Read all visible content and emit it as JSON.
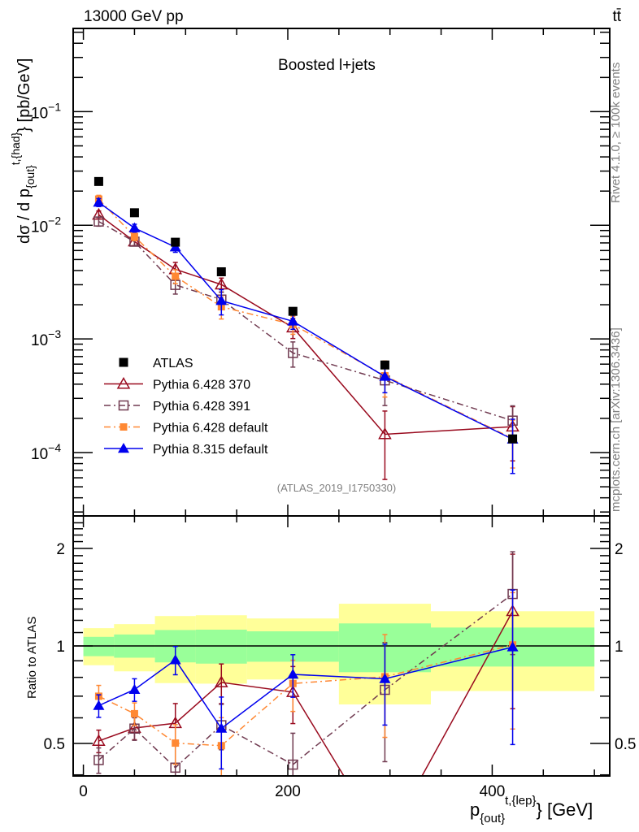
{
  "header": {
    "energy": "13000 GeV pp",
    "process": "tt̄"
  },
  "side_text": {
    "rivet": "Rivet 4.1.0, ≥ 100k events",
    "mcplots": "mcplots.cern.ch [arXiv:1306.3436]"
  },
  "chart_data": [
    {
      "type": "line",
      "title": "Boosted l+jets",
      "analysis": "(ATLAS_2019_I1750330)",
      "ylabel": {
        "main": "dσ / d p",
        "sub": "{out}",
        "sup": "t,{had}",
        "suffix": "} [pb/GeV]"
      },
      "yscale": "log",
      "ylim": [
        2.77e-05,
        0.54
      ],
      "yticks": [
        {
          "v": 0.1,
          "base": "10",
          "exp": "−1"
        },
        {
          "v": 0.01,
          "base": "10",
          "exp": "−2"
        },
        {
          "v": 0.001,
          "base": "10",
          "exp": "−3"
        },
        {
          "v": 0.0001,
          "base": "10",
          "exp": "−4"
        }
      ],
      "xlim": [
        -10,
        515
      ],
      "legend_position": "lower-left",
      "x": [
        15,
        50,
        90,
        135,
        205,
        295,
        420
      ],
      "bin_edges": [
        0,
        30,
        70,
        110,
        160,
        250,
        340,
        500
      ],
      "series": [
        {
          "name": "ATLAS",
          "color": "#000000",
          "marker": "filled-square",
          "line": "none",
          "values": [
            0.0243,
            0.0129,
            0.0071,
            0.0039,
            0.00175,
            0.00059,
            0.000132
          ]
        },
        {
          "name": "Pythia 6.428 370",
          "color": "#990a1e",
          "marker": "open-triangle",
          "line": "solid",
          "values": [
            0.01237,
            0.0072,
            0.0041,
            0.00301,
            0.00126,
            0.000145,
            0.000169
          ],
          "rel_err": [
            0.08,
            0.08,
            0.15,
            0.14,
            0.2,
            0.6,
            0.5
          ]
        },
        {
          "name": "Pythia 6.428 391",
          "color": "#703a50",
          "marker": "open-square",
          "line": "dashdot",
          "values": [
            0.0108,
            0.00717,
            0.00299,
            0.00222,
            0.000753,
            0.000432,
            0.000191
          ],
          "rel_err": [
            0.09,
            0.08,
            0.17,
            0.16,
            0.25,
            0.4,
            0.35
          ]
        },
        {
          "name": "Pythia 6.428 default",
          "color": "#ff8833",
          "marker": "filled-small-square",
          "line": "dashdot",
          "values": [
            0.017,
            0.00797,
            0.00356,
            0.00192,
            0.00134,
            0.000474,
            0.000133
          ],
          "rel_err": [
            0.08,
            0.08,
            0.14,
            0.22,
            0.18,
            0.35,
            0.45
          ]
        },
        {
          "name": "Pythia 8.315 default",
          "color": "#0000ee",
          "marker": "filled-triangle",
          "line": "solid",
          "values": [
            0.0159,
            0.00946,
            0.00643,
            0.00217,
            0.00143,
            0.000467,
            0.000131
          ],
          "rel_err": [
            0.08,
            0.08,
            0.1,
            0.25,
            0.15,
            0.28,
            0.5
          ]
        }
      ]
    },
    {
      "type": "line",
      "ylabel": "Ratio to ATLAS",
      "yscale": "log",
      "ylim": [
        0.397,
        2.52
      ],
      "yticks": [
        {
          "v": 2,
          "label": "2"
        },
        {
          "v": 1,
          "label": "1"
        },
        {
          "v": 0.5,
          "label": "0.5"
        }
      ],
      "xlabel": {
        "main": "p",
        "sub": "{out}",
        "sup": "t,{lep}",
        "suffix": "} [GeV]"
      },
      "xticks": [
        {
          "v": 0,
          "label": "0"
        },
        {
          "v": 200,
          "label": "200"
        },
        {
          "v": 400,
          "label": "400"
        }
      ],
      "band_inner": {
        "color": "#99ff99",
        "low": [
          0.93,
          0.92,
          0.89,
          0.882,
          0.894,
          0.83,
          0.864
        ],
        "high": [
          1.067,
          1.085,
          1.12,
          1.123,
          1.11,
          1.174,
          1.14
        ]
      },
      "band_outer": {
        "color": "#ffff99",
        "low": [
          0.872,
          0.835,
          0.768,
          0.765,
          0.788,
          0.66,
          0.726
        ],
        "high": [
          1.135,
          1.168,
          1.237,
          1.244,
          1.216,
          1.35,
          1.28
        ]
      }
    }
  ]
}
